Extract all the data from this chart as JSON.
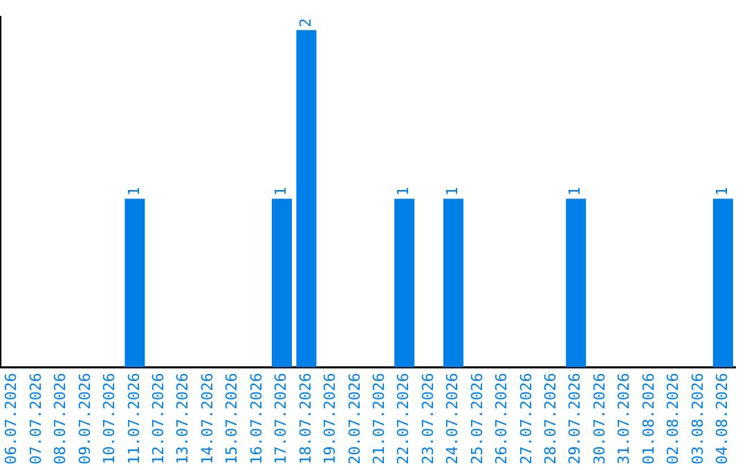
{
  "chart_data": {
    "type": "bar",
    "categories": [
      "06.07.2026",
      "07.07.2026",
      "08.07.2026",
      "09.07.2026",
      "10.07.2026",
      "11.07.2026",
      "12.07.2026",
      "13.07.2026",
      "14.07.2026",
      "15.07.2026",
      "16.07.2026",
      "17.07.2026",
      "18.07.2026",
      "19.07.2026",
      "20.07.2026",
      "21.07.2026",
      "22.07.2026",
      "23.07.2026",
      "24.07.2026",
      "25.07.2026",
      "26.07.2026",
      "27.07.2026",
      "28.07.2026",
      "29.07.2026",
      "30.07.2026",
      "31.07.2026",
      "01.08.2026",
      "02.08.2026",
      "03.08.2026",
      "04.08.2026"
    ],
    "values": [
      0,
      0,
      0,
      0,
      0,
      1,
      0,
      0,
      0,
      0,
      0,
      1,
      2,
      0,
      0,
      0,
      1,
      0,
      1,
      0,
      0,
      0,
      0,
      1,
      0,
      0,
      0,
      0,
      0,
      1
    ],
    "value_labels": [
      null,
      null,
      null,
      null,
      null,
      "1",
      null,
      null,
      null,
      null,
      null,
      "1",
      "2",
      null,
      null,
      null,
      "1",
      null,
      "1",
      null,
      null,
      null,
      null,
      "1",
      null,
      null,
      null,
      null,
      null,
      "1"
    ],
    "color": "#0080e6",
    "tick_labels": "x",
    "grid": false,
    "legend": false
  }
}
